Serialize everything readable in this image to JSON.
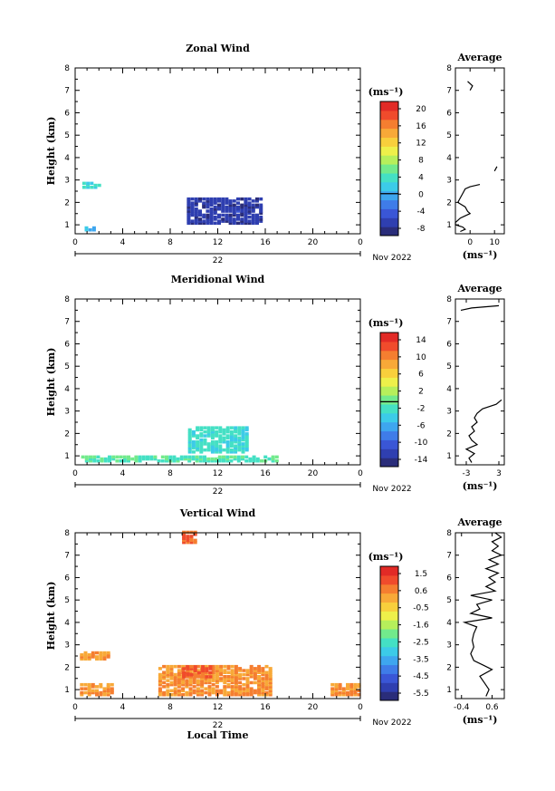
{
  "chart_data": [
    {
      "type": "heatmap",
      "title": "Zonal Wind",
      "ylabel": "Height (km)",
      "xlabel": "",
      "xlim": [
        0,
        24
      ],
      "ylim": [
        0.6,
        8
      ],
      "xticks": [
        "0",
        "4",
        "8",
        "12",
        "16",
        "20",
        "0"
      ],
      "yticks": [
        "1",
        "2",
        "3",
        "4",
        "5",
        "6",
        "7",
        "8"
      ],
      "day_label": "22",
      "month_label": "Nov 2022",
      "colorbar": {
        "unit": "(ms⁻¹)",
        "ticks": [
          "20",
          "16",
          "12",
          "8",
          "4",
          "0",
          "-4",
          "-8"
        ],
        "range": [
          -10,
          22
        ],
        "zero_line": 0
      },
      "regions": [
        {
          "x": [
            0.6,
            1.9
          ],
          "y": [
            2.6,
            2.8
          ],
          "value": 3
        },
        {
          "x": [
            9.4,
            15.5
          ],
          "y": [
            1.0,
            2.1
          ],
          "value": -7
        },
        {
          "x": [
            0.8,
            1.6
          ],
          "y": [
            0.7,
            0.85
          ],
          "value": 1
        }
      ],
      "profile": {
        "title": "Average",
        "xlabel": "(ms⁻¹)",
        "xlim": [
          -6,
          14
        ],
        "xticks": [
          "0",
          "10"
        ],
        "height": [
          0.7,
          0.8,
          0.9,
          1.0,
          1.1,
          1.2,
          1.3,
          1.4,
          1.5,
          1.6,
          1.8,
          2.0,
          2.2,
          2.4,
          2.6,
          2.7,
          2.8
        ],
        "value": [
          -4,
          -2,
          -3,
          -6,
          -6,
          -5,
          -4,
          -2,
          0,
          -1,
          -2,
          -5,
          -4,
          -3,
          -2,
          0,
          4
        ],
        "upper": {
          "height": [
            7.0,
            7.2,
            7.4
          ],
          "value": [
            0,
            1,
            -1
          ]
        },
        "mid": {
          "height": [
            3.4,
            3.6
          ],
          "value": [
            10,
            11
          ]
        }
      }
    },
    {
      "type": "heatmap",
      "title": "Meridional Wind",
      "ylabel": "Height (km)",
      "xlabel": "",
      "xlim": [
        0,
        24
      ],
      "ylim": [
        0.6,
        8
      ],
      "xticks": [
        "0",
        "4",
        "8",
        "12",
        "16",
        "20",
        "0"
      ],
      "yticks": [
        "1",
        "2",
        "3",
        "4",
        "5",
        "6",
        "7",
        "8"
      ],
      "day_label": "22",
      "month_label": "Nov 2022",
      "colorbar": {
        "unit": "(ms⁻¹)",
        "ticks": [
          "14",
          "10",
          "6",
          "2",
          "-2",
          "-6",
          "-10",
          "-14"
        ],
        "range": [
          -15,
          16
        ],
        "zero_line": 0
      },
      "regions": [
        {
          "x": [
            9.5,
            14.5
          ],
          "y": [
            1.1,
            2.2
          ],
          "value": -2
        },
        {
          "x": [
            0.5,
            17.0
          ],
          "y": [
            0.7,
            0.95
          ],
          "value": -1
        }
      ],
      "profile": {
        "title": "Average",
        "xlabel": "(ms⁻¹)",
        "xlim": [
          -5,
          4
        ],
        "xticks": [
          "-3",
          "3"
        ],
        "height": [
          0.7,
          0.9,
          1.1,
          1.3,
          1.5,
          1.7,
          1.9,
          2.1,
          2.3,
          2.5,
          2.7,
          2.9,
          3.1,
          3.3,
          3.5
        ],
        "value": [
          -2,
          -2.5,
          -1.5,
          -3,
          -1,
          -2,
          -2.5,
          -1.5,
          -2,
          -1,
          -1.5,
          -1,
          0,
          2.5,
          3.5
        ],
        "upper": {
          "height": [
            7.5,
            7.6,
            7.7
          ],
          "value": [
            -4,
            -2,
            3
          ]
        }
      }
    },
    {
      "type": "heatmap",
      "title": "Vertical Wind",
      "ylabel": "Height (km)",
      "xlabel": "Local Time",
      "xlim": [
        0,
        24
      ],
      "ylim": [
        0.6,
        8
      ],
      "xticks": [
        "0",
        "4",
        "8",
        "12",
        "16",
        "20",
        "0"
      ],
      "yticks": [
        "1",
        "2",
        "3",
        "4",
        "5",
        "6",
        "7",
        "8"
      ],
      "day_label": "22",
      "month_label": "Nov 2022",
      "colorbar": {
        "unit": "(ms⁻¹)",
        "ticks": [
          "1.5",
          "0.6",
          "-0.5",
          "-1.6",
          "-2.5",
          "-3.5",
          "-4.5",
          "-5.5"
        ],
        "range": [
          -6,
          2
        ],
        "zero_line": null
      },
      "regions": [
        {
          "x": [
            0.4,
            3.2
          ],
          "y": [
            0.7,
            1.2
          ],
          "value": 0.4
        },
        {
          "x": [
            0.4,
            2.8
          ],
          "y": [
            2.3,
            2.6
          ],
          "value": 0.4
        },
        {
          "x": [
            7.0,
            16.5
          ],
          "y": [
            0.7,
            2.0
          ],
          "value": 0.4
        },
        {
          "x": [
            9.0,
            11.5
          ],
          "y": [
            1.5,
            2.0
          ],
          "value": 1.0
        },
        {
          "x": [
            9.0,
            10.0
          ],
          "y": [
            7.5,
            8.0
          ],
          "value": 1.0
        },
        {
          "x": [
            21.5,
            24.0
          ],
          "y": [
            0.7,
            1.2
          ],
          "value": 0.4
        }
      ],
      "profile": {
        "title": "Average",
        "xlabel": "(ms⁻¹)",
        "xlim": [
          -0.6,
          1.0
        ],
        "xticks": [
          "-0.4",
          "0.6"
        ],
        "height": [
          0.7,
          1.0,
          1.3,
          1.6,
          1.9,
          2.1,
          2.3,
          2.6,
          2.9,
          3.2,
          3.5,
          3.8,
          4.0,
          4.2,
          4.4,
          4.6,
          4.8,
          5.0,
          5.2,
          5.4,
          5.6,
          5.8,
          6.0,
          6.2,
          6.4,
          6.6,
          6.8,
          7.0,
          7.2,
          7.4,
          7.6,
          7.8,
          8.0
        ],
        "value": [
          0.4,
          0.5,
          0.35,
          0.2,
          0.6,
          0.3,
          0.0,
          -0.1,
          0.0,
          -0.05,
          0.0,
          0.1,
          -0.3,
          0.6,
          -0.1,
          0.2,
          0.1,
          0.6,
          -0.1,
          0.7,
          0.4,
          0.7,
          0.5,
          0.8,
          0.4,
          0.8,
          0.5,
          0.9,
          0.6,
          0.8,
          0.6,
          0.9,
          0.7
        ]
      }
    }
  ]
}
